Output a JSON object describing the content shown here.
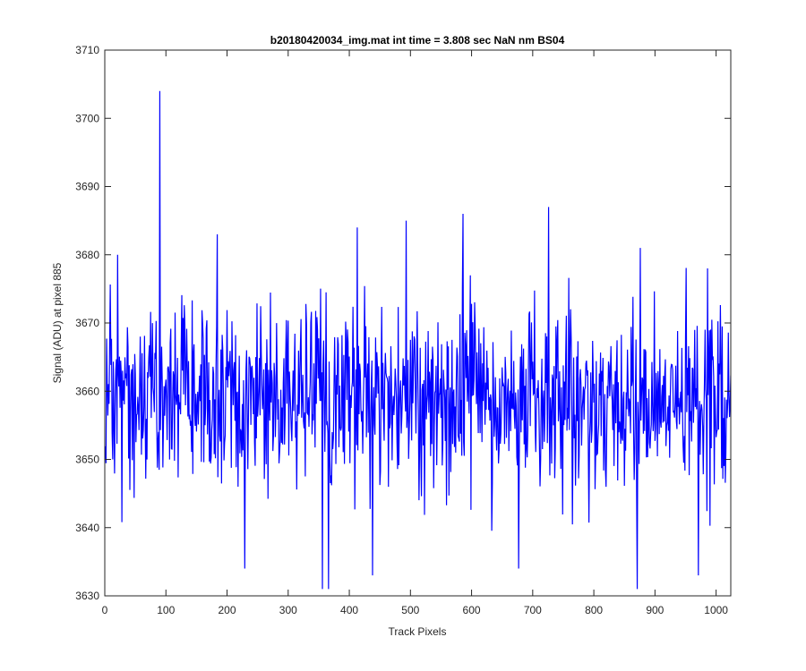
{
  "chart_data": {
    "type": "line",
    "title": "b20180420034_img.mat int time = 3.808 sec  NaN nm BS04",
    "xlabel": "Track Pixels",
    "ylabel": "Signal (ADU) at pixel 885",
    "xlim": [
      0,
      1024
    ],
    "ylim": [
      3630,
      3710
    ],
    "xticks": [
      0,
      100,
      200,
      300,
      400,
      500,
      600,
      700,
      800,
      900,
      1000
    ],
    "yticks": [
      3630,
      3640,
      3650,
      3660,
      3670,
      3680,
      3690,
      3700,
      3710
    ],
    "grid": false,
    "legend": "none",
    "series": [
      {
        "color": "#0000ff",
        "seed": 20180420,
        "n_points": 1024,
        "mean": 3659,
        "stddev": 6.5,
        "notable_points": [
          {
            "x": 89,
            "y": 3704
          },
          {
            "x": 20,
            "y": 3680
          },
          {
            "x": 183,
            "y": 3683
          },
          {
            "x": 355,
            "y": 3631
          },
          {
            "x": 365,
            "y": 3631
          },
          {
            "x": 228,
            "y": 3634
          },
          {
            "x": 412,
            "y": 3684
          },
          {
            "x": 437,
            "y": 3633
          },
          {
            "x": 492,
            "y": 3685
          },
          {
            "x": 585,
            "y": 3686
          },
          {
            "x": 676,
            "y": 3634
          },
          {
            "x": 725,
            "y": 3687
          },
          {
            "x": 870,
            "y": 3631
          },
          {
            "x": 970,
            "y": 3633
          },
          {
            "x": 985,
            "y": 3678
          }
        ]
      }
    ]
  }
}
